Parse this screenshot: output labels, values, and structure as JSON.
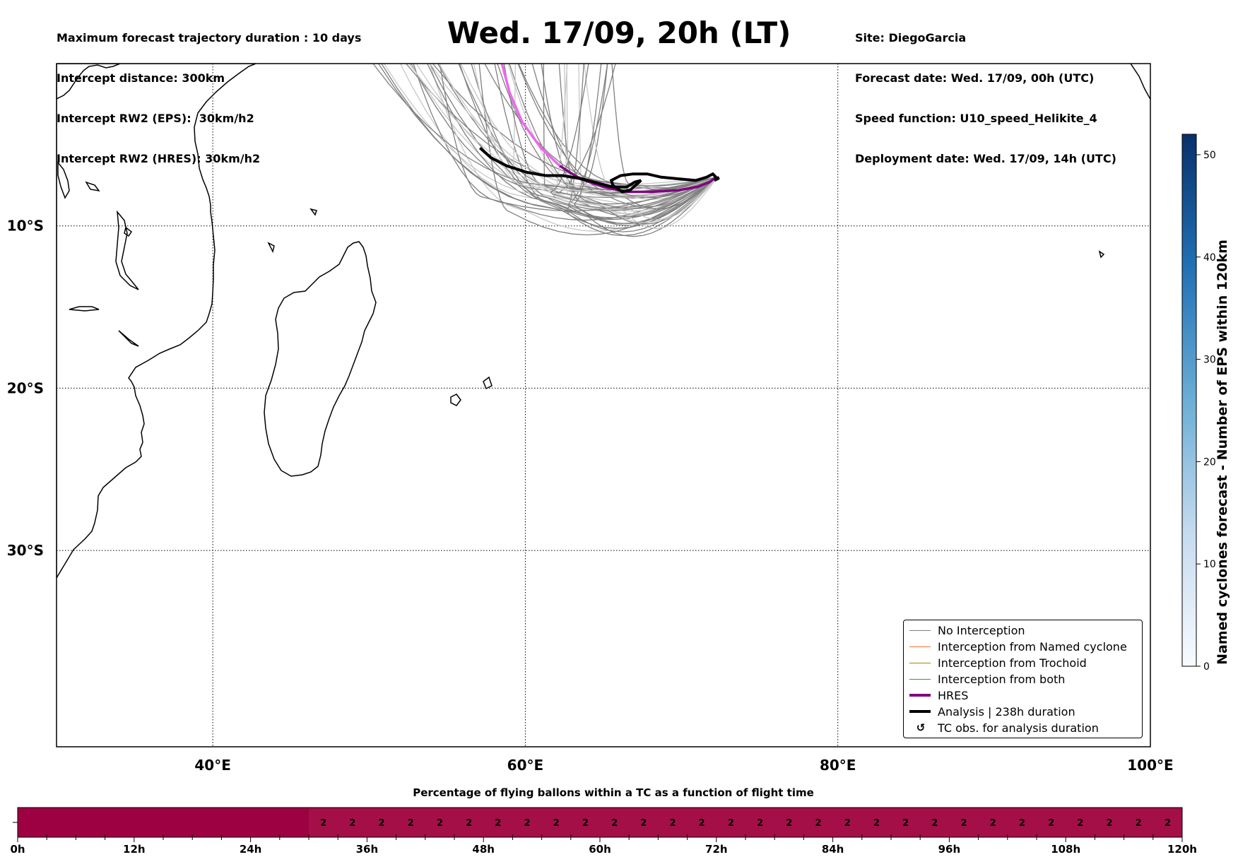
{
  "header": {
    "left_lines": [
      "Maximum forecast trajectory duration : 10 days",
      "Intercept distance: 300km",
      "Intercept RW2 (EPS):  30km/h2",
      "Intercept RW2 (HRES): 30km/h2"
    ],
    "title": "Wed. 17/09, 20h (LT)",
    "right_lines": [
      "Site: DiegoGarcia",
      "Forecast date: Wed. 17/09, 00h (UTC)",
      "Speed function: U10_speed_Helikite_4",
      "Deployment date: Wed. 17/09, 14h (UTC)"
    ]
  },
  "map": {
    "lon_range": [
      30,
      100
    ],
    "lat_range": [
      -42.1,
      0
    ],
    "lon_ticks": [
      {
        "value": 40,
        "label": "40°E"
      },
      {
        "value": 60,
        "label": "60°E"
      },
      {
        "value": 80,
        "label": "80°E"
      },
      {
        "value": 100,
        "label": "100°E"
      }
    ],
    "lat_ticks": [
      {
        "value": -10,
        "label": "10°S"
      },
      {
        "value": -20,
        "label": "20°S"
      },
      {
        "value": -30,
        "label": "30°S"
      }
    ],
    "gridlines": "dotted"
  },
  "chart_data": [
    {
      "type": "line",
      "title": "Wed. 17/09, 20h (LT)",
      "xlabel": "",
      "ylabel": "",
      "xlim": [
        30,
        100
      ],
      "ylim": [
        -42.1,
        0
      ],
      "series": [
        {
          "name": "HRES",
          "color": "#800080",
          "x": [
            58.5,
            59.0,
            59.8,
            61.0,
            62.2,
            63.5,
            65.0,
            66.5,
            68.0,
            69.8,
            71.0,
            71.8,
            72.2
          ],
          "y": [
            0.0,
            -1.8,
            -3.6,
            -5.2,
            -6.3,
            -7.1,
            -7.6,
            -7.9,
            -7.9,
            -7.8,
            -7.6,
            -7.3,
            -7.0
          ]
        },
        {
          "name": "Analysis | 238h duration",
          "color": "#000000",
          "x": [
            57.1,
            57.8,
            58.8,
            60.1,
            61.3,
            62.4,
            63.6,
            64.8,
            65.6,
            66.5,
            67.0,
            67.4,
            66.7,
            66.2,
            65.6,
            65.5,
            66.1,
            66.9,
            67.8,
            68.7,
            69.8,
            70.9,
            71.6,
            72.0,
            72.3,
            72.1,
            72.4
          ],
          "y": [
            -5.2,
            -5.8,
            -6.3,
            -6.7,
            -6.9,
            -6.9,
            -7.1,
            -7.4,
            -7.6,
            -7.6,
            -7.3,
            -7.2,
            -7.8,
            -7.9,
            -7.5,
            -7.2,
            -6.9,
            -6.8,
            -6.8,
            -7.0,
            -7.1,
            -7.2,
            -7.0,
            -6.8,
            -7.1,
            -7.2,
            -7.0
          ]
        }
      ],
      "ensemble": {
        "name": "No Interception",
        "color": "#808080",
        "faded_color": "#c8c8c8",
        "count": 50
      }
    },
    {
      "type": "heatmap",
      "title": "Percentage of flying ballons within a TC as a function of flight time",
      "xlabel": "",
      "x_ticks": [
        "0h",
        "12h",
        "24h",
        "36h",
        "48h",
        "60h",
        "72h",
        "84h",
        "96h",
        "108h",
        "120h"
      ],
      "x_range_hours": [
        0,
        120
      ],
      "zero_until_hours": 30,
      "cell_labels": [
        "2",
        "2",
        "2",
        "2",
        "2",
        "2",
        "2",
        "2",
        "2",
        "2",
        "2",
        "2",
        "2",
        "2",
        "2",
        "2",
        "2",
        "2",
        "2",
        "2",
        "2",
        "2",
        "2",
        "2",
        "2",
        "2",
        "2",
        "2",
        "2",
        "2"
      ],
      "cell_values_percent": [
        2,
        2,
        2,
        2,
        2,
        2,
        2,
        2,
        2,
        2,
        2,
        2,
        2,
        2,
        2,
        2,
        2,
        2,
        2,
        2,
        2,
        2,
        2,
        2,
        2,
        2,
        2,
        2,
        2,
        2
      ]
    }
  ],
  "legend": {
    "items": [
      {
        "label": "No Interception",
        "color": "#808080",
        "style": "thin"
      },
      {
        "label": "Interception from Named cyclone",
        "color": "#ff6a2b",
        "style": "thin"
      },
      {
        "label": "Interception from Trochoid",
        "color": "#9a8a00",
        "style": "thin"
      },
      {
        "label": "Interception from both",
        "color": "#2ca02c",
        "style": "thin"
      },
      {
        "label": "HRES",
        "color": "#800080",
        "style": "thick"
      },
      {
        "label": "Analysis | 238h duration",
        "color": "#000000",
        "style": "thick"
      },
      {
        "label": "TC obs. for analysis duration",
        "color": "#000000",
        "style": "symbol",
        "symbol": "↺"
      }
    ]
  },
  "colorbar": {
    "label": "Named cyclones forecast - Number of EPS within 120km",
    "range": [
      0,
      52
    ],
    "ticks": [
      "0",
      "10",
      "20",
      "30",
      "40",
      "50"
    ],
    "colors": [
      "#f7fbff",
      "#08306b"
    ]
  }
}
